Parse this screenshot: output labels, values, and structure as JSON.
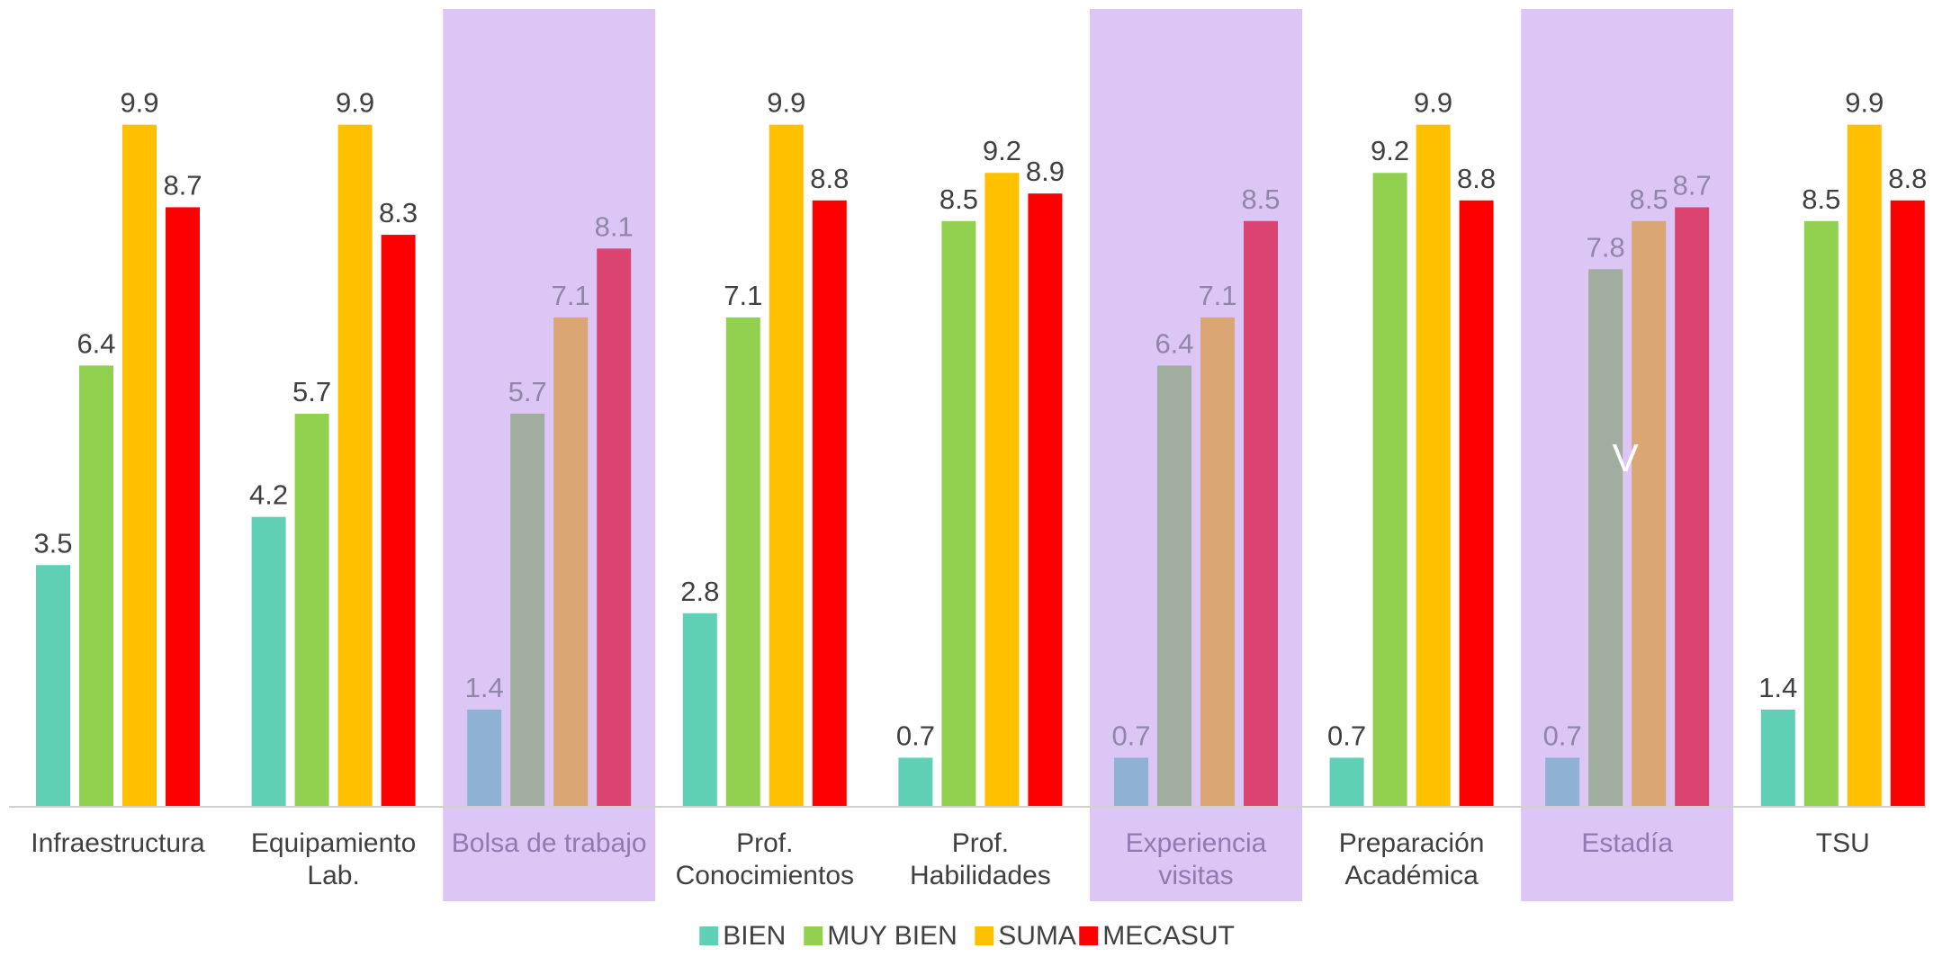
{
  "chart_data": {
    "type": "bar",
    "title": "",
    "xlabel": "",
    "ylabel": "",
    "ylim": [
      0,
      10
    ],
    "grid": false,
    "legend_position": "bottom",
    "categories": [
      "Infraestructura",
      "Equipamiento Lab.",
      "Bolsa de trabajo",
      "Prof. Conocimientos",
      "Prof. Habilidades",
      "Experiencia visitas",
      "Preparación Académica",
      "Estadía",
      "TSU"
    ],
    "category_lines": [
      [
        "Infraestructura"
      ],
      [
        "Equipamiento",
        "Lab."
      ],
      [
        "Bolsa de trabajo"
      ],
      [
        "Prof.",
        "Conocimientos"
      ],
      [
        "Prof.",
        "Habilidades"
      ],
      [
        "Experiencia",
        "visitas"
      ],
      [
        "Preparación",
        "Académica"
      ],
      [
        "Estadía"
      ],
      [
        "TSU"
      ]
    ],
    "highlighted_categories": [
      "Bolsa de trabajo",
      "Experiencia visitas",
      "Estadía"
    ],
    "series": [
      {
        "name": "BIEN",
        "color": "#5fd0b4",
        "dim_color": "#8eb1d4",
        "values": [
          3.5,
          4.2,
          1.4,
          2.8,
          0.7,
          0.7,
          0.7,
          0.7,
          1.4
        ]
      },
      {
        "name": "MUY BIEN",
        "color": "#92d050",
        "dim_color": "#a1ad9f",
        "values": [
          6.4,
          5.7,
          5.7,
          7.1,
          8.5,
          6.4,
          9.2,
          7.8,
          8.5
        ]
      },
      {
        "name": "SUMA",
        "color": "#ffc000",
        "dim_color": "#d9a674",
        "values": [
          9.9,
          9.9,
          7.1,
          9.9,
          9.2,
          7.1,
          9.9,
          8.5,
          9.9
        ]
      },
      {
        "name": "MECASUT",
        "color": "#ff0000",
        "dim_color": "#db4470",
        "values": [
          8.7,
          8.3,
          8.1,
          8.8,
          8.9,
          8.5,
          8.8,
          8.7,
          8.8
        ]
      }
    ],
    "annotations": [
      {
        "text": "V",
        "category": "Estadía"
      }
    ],
    "highlight_color": "#dbc6f6",
    "axis_color": "#d0d0d0"
  }
}
